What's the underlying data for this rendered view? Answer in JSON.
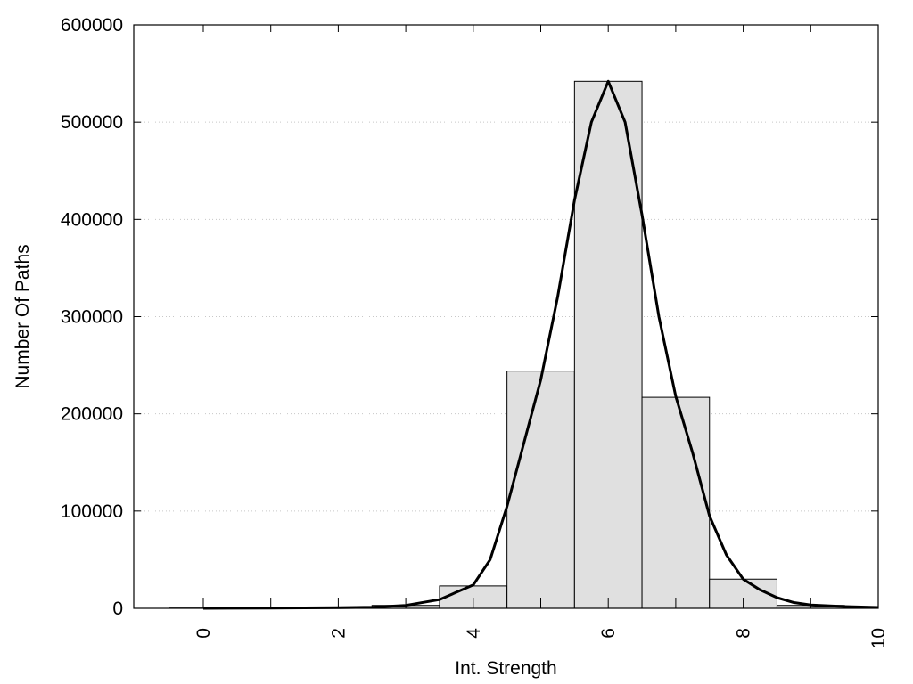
{
  "chart_data": {
    "type": "bar",
    "title": "",
    "xlabel": "Int. Strength",
    "ylabel": "Number Of Paths",
    "xlim": [
      -1,
      10
    ],
    "ylim": [
      0,
      600000
    ],
    "xticks": [
      0,
      2,
      4,
      6,
      8,
      10
    ],
    "yticks": [
      0,
      100000,
      200000,
      300000,
      400000,
      500000,
      600000
    ],
    "grid": "horizontal dotted",
    "bar_color": "#e0e0e0",
    "bar_edge_color": "#000000",
    "bins": [
      {
        "x": 0,
        "value": 300
      },
      {
        "x": 1,
        "value": 500
      },
      {
        "x": 2,
        "value": 1000
      },
      {
        "x": 3,
        "value": 3000
      },
      {
        "x": 4,
        "value": 23000
      },
      {
        "x": 5,
        "value": 244000
      },
      {
        "x": 6,
        "value": 542000
      },
      {
        "x": 7,
        "value": 217000
      },
      {
        "x": 8,
        "value": 30000
      },
      {
        "x": 9,
        "value": 3000
      },
      {
        "x": 10,
        "value": 500
      }
    ],
    "curve": {
      "name": "",
      "color": "#000000",
      "points": [
        [
          0,
          0
        ],
        [
          1,
          200
        ],
        [
          2,
          600
        ],
        [
          2.5,
          1200
        ],
        [
          3,
          3000
        ],
        [
          3.5,
          9000
        ],
        [
          4,
          24000
        ],
        [
          4.25,
          50000
        ],
        [
          4.5,
          105000
        ],
        [
          4.75,
          170000
        ],
        [
          5,
          235000
        ],
        [
          5.25,
          320000
        ],
        [
          5.5,
          420000
        ],
        [
          5.75,
          500000
        ],
        [
          6,
          542000
        ],
        [
          6.25,
          500000
        ],
        [
          6.5,
          405000
        ],
        [
          6.75,
          300000
        ],
        [
          7,
          218000
        ],
        [
          7.25,
          160000
        ],
        [
          7.5,
          95000
        ],
        [
          7.75,
          55000
        ],
        [
          8,
          30000
        ],
        [
          8.25,
          19000
        ],
        [
          8.5,
          11000
        ],
        [
          8.75,
          6000
        ],
        [
          9,
          3500
        ],
        [
          9.5,
          1800
        ],
        [
          10,
          900
        ]
      ]
    }
  }
}
